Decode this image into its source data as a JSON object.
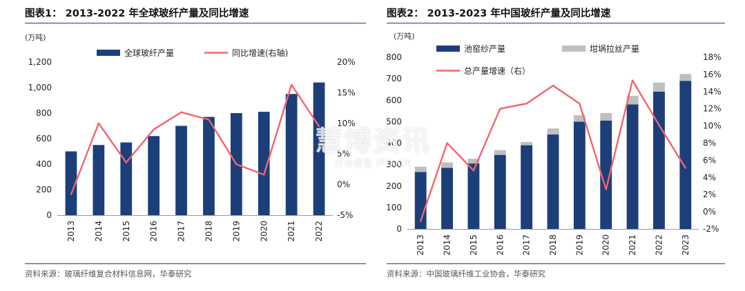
{
  "charts": [
    {
      "figure_title": "图表1：  2013-2022 年全球玻纤产量及同比增速",
      "unit_label": "(万吨)",
      "source": "资料来源：玻璃纤维复合材料信息网，华泰研究",
      "colors": {
        "bar": "#1c3f7a",
        "line": "#f0646e"
      },
      "legend": {
        "bar": "全球玻纤产量",
        "line": "同比增速(右轴)"
      }
    },
    {
      "figure_title": "图表2：  2013-2023 年中国玻纤产量及同比增速",
      "unit_label": "(万吨)",
      "source": "资料来源：中国玻璃纤维工业协会，华泰研究",
      "colors": {
        "bar1": "#1c3f7a",
        "bar2": "#bfbfbf",
        "line": "#f0646e"
      },
      "legend": {
        "bar1": "池窑纱产量",
        "bar2": "坩埚拉丝产量",
        "line": "总产量增速（右）"
      }
    }
  ],
  "watermark": {
    "main": "慧博资讯",
    "sub": "行业报告 IPO.CN"
  },
  "chart_data": [
    {
      "type": "bar",
      "categories": [
        "2013",
        "2014",
        "2015",
        "2016",
        "2017",
        "2018",
        "2019",
        "2020",
        "2021",
        "2022"
      ],
      "series": [
        {
          "name": "全球玻纤产量",
          "type": "bar",
          "axis": "left",
          "values": [
            500,
            550,
            570,
            620,
            700,
            770,
            800,
            810,
            950,
            1040
          ]
        },
        {
          "name": "同比增速(右轴)",
          "type": "line",
          "axis": "right",
          "values": [
            -1.6,
            10.0,
            3.6,
            9.0,
            11.8,
            10.6,
            3.3,
            1.6,
            16.3,
            9.5
          ]
        }
      ],
      "y_left": {
        "min": 0,
        "max": 1200,
        "step": 200,
        "ticks": [
          "0",
          "200",
          "400",
          "600",
          "800",
          "1,000",
          "1,200"
        ]
      },
      "y_right": {
        "min": -5,
        "max": 20,
        "step": 5,
        "ticks": [
          "-5%",
          "0%",
          "5%",
          "10%",
          "15%",
          "20%"
        ]
      },
      "legend_position": "top"
    },
    {
      "type": "bar",
      "stacked": true,
      "categories": [
        "2013",
        "2014",
        "2015",
        "2016",
        "2017",
        "2018",
        "2019",
        "2020",
        "2021",
        "2022",
        "2023"
      ],
      "series": [
        {
          "name": "池窑纱产量",
          "type": "bar",
          "axis": "left",
          "values": [
            265,
            285,
            305,
            345,
            390,
            440,
            500,
            505,
            580,
            640,
            690
          ]
        },
        {
          "name": "坩埚拉丝产量",
          "type": "bar",
          "axis": "left",
          "values": [
            25,
            25,
            22,
            22,
            15,
            28,
            30,
            35,
            40,
            42,
            32
          ]
        },
        {
          "name": "总产量增速（右）",
          "type": "line",
          "axis": "right",
          "values": [
            -1.1,
            8.0,
            4.8,
            12.0,
            12.6,
            14.7,
            12.6,
            2.6,
            15.3,
            10.1,
            5.1
          ]
        }
      ],
      "y_left": {
        "min": 0,
        "max": 800,
        "step": 100,
        "ticks": [
          "0",
          "100",
          "200",
          "300",
          "400",
          "500",
          "600",
          "700",
          "800"
        ]
      },
      "y_right": {
        "min": -2,
        "max": 18,
        "step": 2,
        "ticks": [
          "-2%",
          "0%",
          "2%",
          "4%",
          "6%",
          "8%",
          "10%",
          "12%",
          "14%",
          "16%",
          "18%"
        ]
      },
      "legend_position": "top"
    }
  ]
}
